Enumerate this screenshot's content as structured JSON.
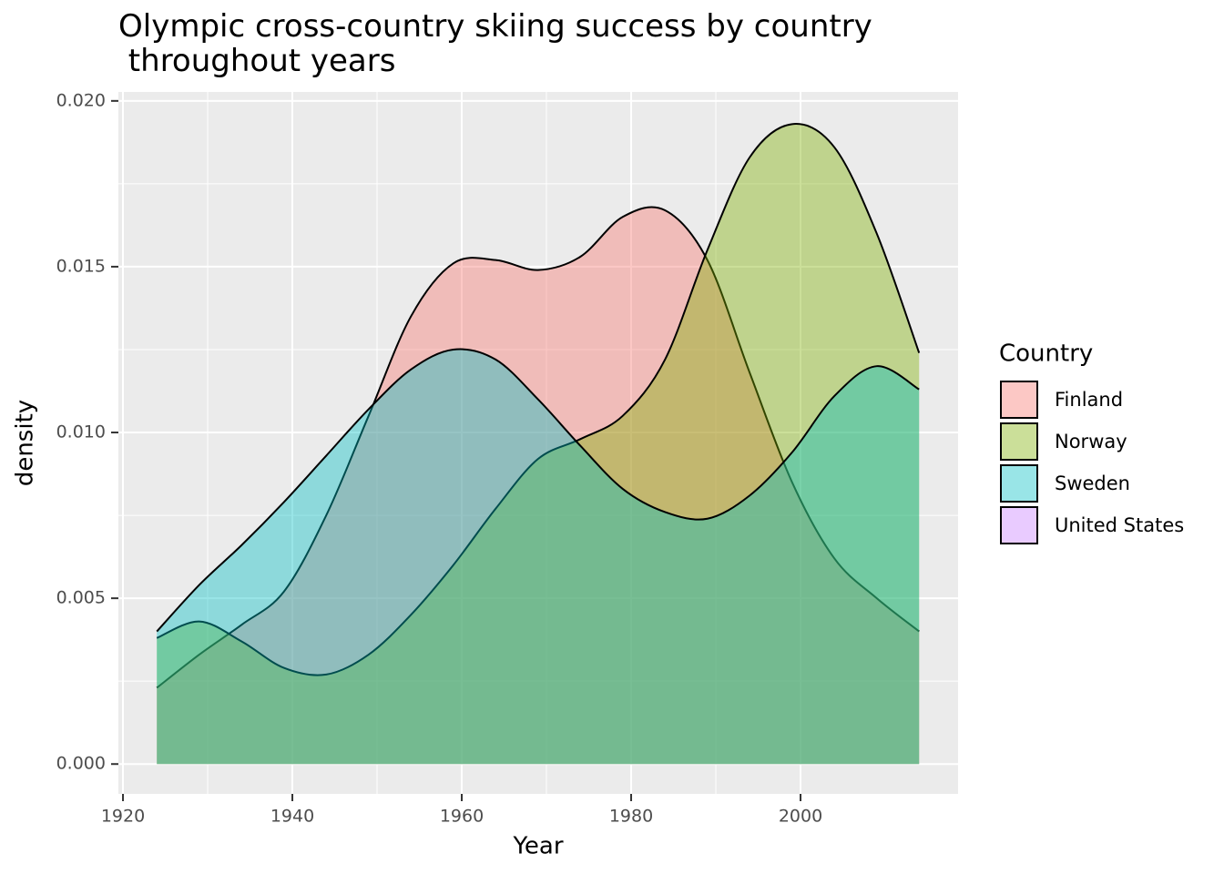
{
  "chart_data": {
    "type": "density",
    "title": "Olympic cross-country skiing success by country\n throughout years",
    "x_label": "Year",
    "y_label": "density",
    "legend_title": "Country",
    "legend_position": "right",
    "grid": true,
    "x": [
      1924,
      1929,
      1934,
      1939,
      1944,
      1949,
      1954,
      1959,
      1964,
      1969,
      1974,
      1979,
      1984,
      1989,
      1994,
      1999,
      2004,
      2009,
      2014
    ],
    "series": [
      {
        "name": "Finland",
        "color": "#F8766D",
        "values": [
          0.0023,
          0.0033,
          0.0042,
          0.0052,
          0.0075,
          0.0105,
          0.0135,
          0.0151,
          0.0152,
          0.0149,
          0.0153,
          0.0165,
          0.0167,
          0.0152,
          0.0118,
          0.0085,
          0.0062,
          0.005,
          0.004
        ]
      },
      {
        "name": "Norway",
        "color": "#7CAE00",
        "values": [
          0.0038,
          0.0043,
          0.0037,
          0.0029,
          0.0027,
          0.0033,
          0.0045,
          0.006,
          0.0077,
          0.0092,
          0.0098,
          0.0105,
          0.0122,
          0.0155,
          0.0183,
          0.0193,
          0.0186,
          0.016,
          0.0124
        ]
      },
      {
        "name": "Sweden",
        "color": "#00BFC4",
        "values": [
          0.004,
          0.0054,
          0.0066,
          0.0079,
          0.0093,
          0.0107,
          0.0119,
          0.0125,
          0.0122,
          0.011,
          0.0096,
          0.0083,
          0.0076,
          0.0074,
          0.0081,
          0.0094,
          0.0111,
          0.012,
          0.0113
        ]
      },
      {
        "name": "United States",
        "color": "#C77CFF",
        "values": [
          null,
          null,
          null,
          null,
          null,
          null,
          null,
          null,
          null,
          null,
          null,
          null,
          null,
          null,
          null,
          null,
          null,
          null,
          null
        ]
      }
    ],
    "xlim": [
      1919.46,
      2018.6
    ],
    "ylim": [
      -0.0009,
      0.02027
    ],
    "xticks": [
      1920,
      1940,
      1960,
      1980,
      2000
    ],
    "yticks": [
      {
        "value": 0,
        "label": "0.000"
      },
      0.005,
      {
        "value": 0.01,
        "label": "0.010"
      },
      0.015,
      {
        "value": 0.02,
        "label": "0.020"
      }
    ]
  }
}
